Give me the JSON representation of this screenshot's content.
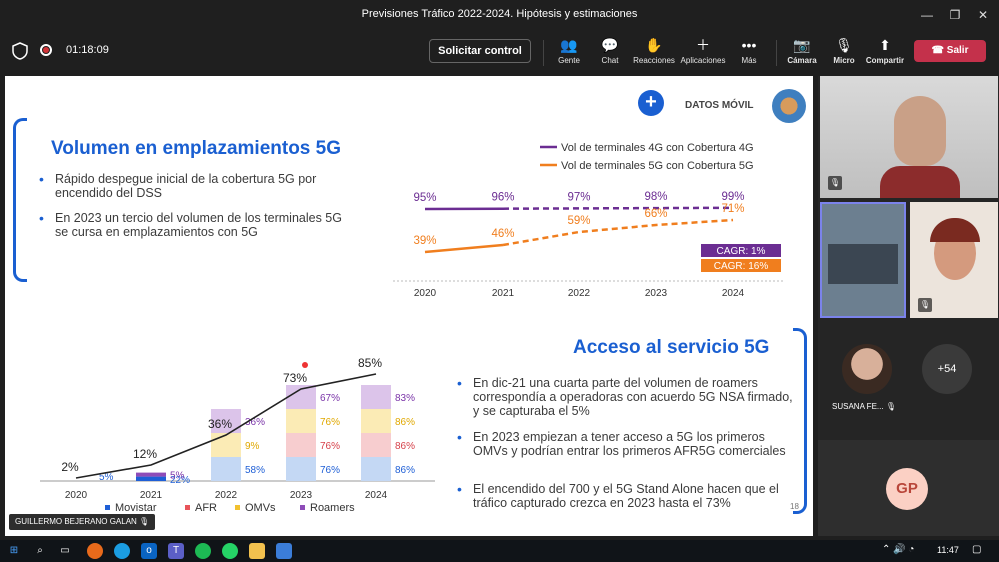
{
  "window": {
    "title": "Previsiones Tráfico 2022-2024. Hipótesis y estimaciones"
  },
  "toolbar": {
    "timer": "01:18:09",
    "request_control": "Solicitar control",
    "items": [
      {
        "label": "Gente",
        "icon": "people-icon"
      },
      {
        "label": "Chat",
        "icon": "chat-icon"
      },
      {
        "label": "Reacciones",
        "icon": "reactions-icon"
      },
      {
        "label": "Aplicaciones",
        "icon": "plus-icon"
      },
      {
        "label": "Más",
        "icon": "more-icon"
      },
      {
        "label": "Cámara",
        "icon": "camera-off-icon"
      },
      {
        "label": "Micro",
        "icon": "mic-off-icon"
      },
      {
        "label": "Compartir",
        "icon": "share-icon"
      }
    ],
    "leave": "Salir"
  },
  "slide": {
    "header_label": "DATOS MÓVIL",
    "page_number": "18",
    "section1": {
      "title": "Volumen en emplazamientos 5G",
      "bullets": [
        "Rápido despegue inicial de la cobertura 5G por encendido del DSS",
        "En 2023 un tercio del volumen de los terminales 5G se cursa en emplazamientos con 5G"
      ]
    },
    "section2": {
      "title": "Acceso al servicio 5G",
      "bullets": [
        "En dic-21 una cuarta parte del volumen de roamers correspondía a operadoras con acuerdo 5G NSA firmado, y se capturaba el 5%",
        "En 2023 empiezan a tener acceso a 5G los primeros OMVs y podrían entrar los primeros AFR5G comerciales",
        "El encendido del 700 y el 5G Stand Alone hacen que el tráfico capturado crezca en 2023 hasta el 73%"
      ]
    }
  },
  "chart_data": [
    {
      "type": "line",
      "x": [
        "2020",
        "2021",
        "2022",
        "2023",
        "2024"
      ],
      "series": [
        {
          "name": "Vol de terminales 4G con Cobertura 4G",
          "values": [
            95,
            96,
            97,
            98,
            99
          ],
          "labels": [
            "95%",
            "96%",
            "97%",
            "98%",
            "99%"
          ],
          "color": "#6b2d92"
        },
        {
          "name": "Vol de terminales 5G con Cobertura 5G",
          "values": [
            39,
            46,
            59,
            66,
            71
          ],
          "labels": [
            "39%",
            "46%",
            "59%",
            "66%",
            "71%"
          ],
          "color": "#f07e1e"
        }
      ],
      "annotations": [
        {
          "text": "CAGR: 1%",
          "color": "#6b2d92"
        },
        {
          "text": "CAGR: 16%",
          "color": "#f07e1e"
        }
      ]
    },
    {
      "type": "bar",
      "categories": [
        "2020",
        "2021",
        "2022",
        "2023",
        "2024"
      ],
      "legend": [
        "Movistar",
        "AFR",
        "OMVs",
        "Roamers"
      ],
      "colors": {
        "Movistar": "#1f5fd6",
        "AFR": "#e8545a",
        "OMVs": "#f2c12e",
        "Roamers": "#8e4cb8"
      },
      "stacks": [
        [],
        [
          {
            "series": "Movistar",
            "value": 22,
            "label": "22%"
          },
          {
            "series": "Roamers",
            "value": 5,
            "label": "5%"
          }
        ],
        [
          {
            "series": "Movistar",
            "value": 58,
            "label": "58%"
          },
          {
            "series": "OMVs",
            "value": 9,
            "label": "9%"
          },
          {
            "series": "Roamers",
            "value": 36,
            "label": "36%"
          }
        ],
        [
          {
            "series": "Movistar",
            "value": 76,
            "label": "76%"
          },
          {
            "series": "AFR",
            "value": 76,
            "label": "76%"
          },
          {
            "series": "OMVs",
            "value": 76,
            "label": "76%"
          },
          {
            "series": "Roamers",
            "value": 67,
            "label": "67%"
          }
        ],
        [
          {
            "series": "Movistar",
            "value": 86,
            "label": "86%"
          },
          {
            "series": "AFR",
            "value": 86,
            "label": "86%"
          },
          {
            "series": "OMVs",
            "value": 86,
            "label": "86%"
          },
          {
            "series": "Roamers",
            "value": 83,
            "label": "83%"
          }
        ]
      ],
      "line": {
        "values": [
          2,
          12,
          36,
          73,
          85
        ],
        "labels": [
          "2%",
          "12%",
          "36%",
          "73%",
          "85%"
        ]
      },
      "extra_label_2020": "5%"
    }
  ],
  "participants": {
    "tiles": [
      {
        "name": "",
        "muted": true
      },
      {
        "name": "",
        "muted": false
      },
      {
        "name": "",
        "muted": true
      },
      {
        "name": "SUSANA FE...",
        "muted": true
      }
    ],
    "more_count": "+54",
    "initials": "GP",
    "presenter": "GUILLERMO BEJERANO GALAN"
  },
  "taskbar": {
    "time": "11:47"
  }
}
